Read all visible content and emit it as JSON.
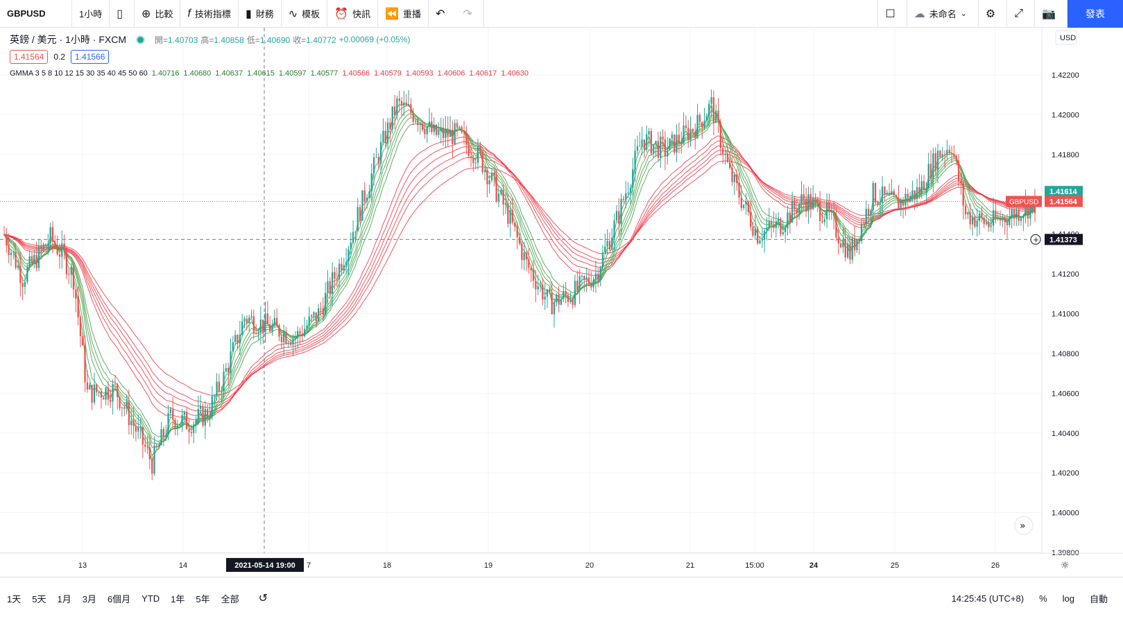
{
  "toolbar": {
    "symbol": "GBPUSD",
    "interval": "1小時",
    "compare": "比較",
    "indicators": "技術指標",
    "financials": "財務",
    "templates": "模板",
    "alert": "快訊",
    "replay": "重播",
    "layout_name": "未命名",
    "publish": "發表"
  },
  "legend": {
    "title": "英鎊 / 美元 · 1小時 · FXCM",
    "open_label": "開=",
    "open": "1.40703",
    "high_label": "高=",
    "high": "1.40858",
    "low_label": "低=",
    "low": "1.40690",
    "close_label": "收=",
    "close": "1.40772",
    "change": "+0.00069 (+0.05%)",
    "bid": "1.41564",
    "spread": "0.2",
    "ask": "1.41566",
    "gmma_label": "GMMA 3 5 8 10 12 15 30 35 40 45 50 60",
    "gmma_values_short": [
      "1.40716",
      "1.40680",
      "1.40637",
      "1.40615",
      "1.40597",
      "1.40577"
    ],
    "gmma_values_long": [
      "1.40566",
      "1.40579",
      "1.40593",
      "1.40606",
      "1.40617",
      "1.40630"
    ]
  },
  "price_axis": {
    "currency": "USD",
    "ticks": [
      "1.42200",
      "1.42000",
      "1.41800",
      "1.41600",
      "1.41400",
      "1.41200",
      "1.41000",
      "1.40800",
      "1.40600",
      "1.40400",
      "1.40200",
      "1.40000",
      "1.39800"
    ],
    "last_price": "1.41614",
    "symbol_tag": "GBPUSD",
    "symbol_price": "1.41564",
    "crosshair_price": "1.41373"
  },
  "time_axis": {
    "ticks": [
      "13",
      "14",
      "7",
      "18",
      "19",
      "20",
      "21",
      "15:00",
      "24",
      "25",
      "26"
    ],
    "crosshair_label": "2021-05-14   19:00"
  },
  "bottombar": {
    "ranges": [
      "1天",
      "5天",
      "1月",
      "3月",
      "6個月",
      "YTD",
      "1年",
      "5年",
      "全部"
    ],
    "clock": "14:25:45 (UTC+8)",
    "percent": "%",
    "log": "log",
    "auto": "自動"
  },
  "colors": {
    "up": "#26a69a",
    "down": "#ef5350",
    "accent": "#2962ff",
    "short_ema": "#43a047",
    "long_ema": "#f23645"
  },
  "chart_data": {
    "type": "candlestick",
    "ylim": [
      1.398,
      1.423
    ],
    "anchors": [
      [
        0,
        1.414
      ],
      [
        8,
        1.4118
      ],
      [
        20,
        1.4138
      ],
      [
        26,
        1.4128
      ],
      [
        30,
        1.4118
      ],
      [
        36,
        1.406
      ],
      [
        48,
        1.4062
      ],
      [
        60,
        1.4035
      ],
      [
        64,
        1.4025
      ],
      [
        72,
        1.4048
      ],
      [
        80,
        1.4045
      ],
      [
        88,
        1.405
      ],
      [
        95,
        1.4068
      ],
      [
        104,
        1.4098
      ],
      [
        118,
        1.4092
      ],
      [
        126,
        1.4088
      ],
      [
        136,
        1.41
      ],
      [
        148,
        1.4132
      ],
      [
        162,
        1.418
      ],
      [
        170,
        1.4205
      ],
      [
        178,
        1.42
      ],
      [
        186,
        1.419
      ],
      [
        196,
        1.419
      ],
      [
        206,
        1.4178
      ],
      [
        218,
        1.415
      ],
      [
        226,
        1.4125
      ],
      [
        236,
        1.4105
      ],
      [
        246,
        1.411
      ],
      [
        256,
        1.412
      ],
      [
        266,
        1.415
      ],
      [
        276,
        1.4188
      ],
      [
        286,
        1.4182
      ],
      [
        300,
        1.4195
      ],
      [
        306,
        1.4205
      ],
      [
        314,
        1.417
      ],
      [
        326,
        1.414
      ],
      [
        336,
        1.4145
      ],
      [
        346,
        1.4158
      ],
      [
        356,
        1.415
      ],
      [
        366,
        1.413
      ],
      [
        376,
        1.416
      ],
      [
        386,
        1.4155
      ],
      [
        396,
        1.4162
      ],
      [
        404,
        1.418
      ],
      [
        410,
        1.4185
      ],
      [
        416,
        1.415
      ],
      [
        426,
        1.4145
      ],
      [
        436,
        1.415
      ],
      [
        446,
        1.4155
      ]
    ],
    "note_sorted": true
  }
}
